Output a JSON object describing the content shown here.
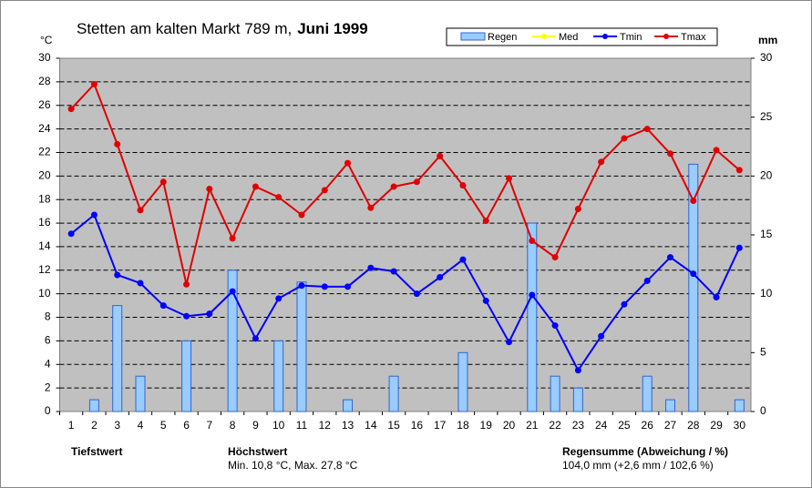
{
  "chart_data": {
    "type": "bar-line",
    "title": "Stetten am kalten Markt  789 m,",
    "title_emphasis": "Juni 1999",
    "y_unit": "°C",
    "y2_unit": "mm",
    "categories": [
      "1",
      "2",
      "3",
      "4",
      "5",
      "6",
      "7",
      "8",
      "9",
      "10",
      "11",
      "12",
      "13",
      "14",
      "15",
      "16",
      "17",
      "18",
      "19",
      "20",
      "21",
      "22",
      "23",
      "24",
      "25",
      "26",
      "27",
      "28",
      "29",
      "30"
    ],
    "series": [
      {
        "name": "Regen",
        "kind": "bar",
        "axis": "y2",
        "color": "#99ccff",
        "values": [
          0,
          1,
          9,
          3,
          0,
          6,
          0,
          12,
          0,
          6,
          11,
          0,
          1,
          0,
          3,
          0,
          0,
          5,
          0,
          0,
          16,
          3,
          2,
          0,
          0,
          3,
          1,
          21,
          0,
          1
        ]
      },
      {
        "name": "Med",
        "kind": "line",
        "color": "#ffff00",
        "values": [
          null,
          null,
          null,
          null,
          null,
          null,
          null,
          null,
          null,
          null,
          null,
          null,
          null,
          null,
          null,
          null,
          null,
          null,
          null,
          null,
          null,
          null,
          null,
          null,
          null,
          null,
          null,
          null,
          null,
          null
        ]
      },
      {
        "name": "Tmin",
        "kind": "line",
        "color": "#0000ff",
        "values": [
          15.1,
          16.7,
          11.6,
          10.9,
          9.0,
          8.1,
          8.3,
          10.2,
          6.2,
          9.6,
          10.7,
          10.6,
          10.6,
          12.2,
          11.9,
          10.0,
          11.4,
          12.9,
          9.4,
          5.9,
          9.9,
          7.3,
          3.5,
          6.4,
          9.1,
          11.1,
          13.1,
          11.7,
          9.7,
          13.9
        ]
      },
      {
        "name": "Tmax",
        "kind": "line",
        "color": "#e00000",
        "values": [
          25.7,
          27.8,
          22.7,
          17.1,
          19.5,
          10.8,
          18.9,
          14.7,
          19.1,
          18.2,
          16.7,
          18.8,
          21.1,
          17.3,
          19.1,
          19.5,
          21.7,
          19.2,
          16.2,
          19.8,
          14.5,
          13.1,
          17.2,
          21.2,
          23.2,
          24.0,
          21.9,
          17.9,
          22.2,
          20.5
        ]
      }
    ],
    "ylim": [
      0,
      30
    ],
    "yticks": [
      0,
      2,
      4,
      6,
      8,
      10,
      12,
      14,
      16,
      18,
      20,
      22,
      24,
      26,
      28,
      30
    ],
    "y2lim": [
      0,
      30
    ],
    "y2ticks": [
      0,
      5,
      10,
      15,
      20,
      25,
      30
    ],
    "grid": true,
    "background": "#c0c0c0",
    "footer": {
      "left_label": "Tiefstwert",
      "middle_label": "Höchstwert",
      "middle_text": "Min. 10,8 °C, Max. 27,8 °C",
      "right_label": "Regensumme (Abweichung / %)",
      "right_text": "104,0 mm (+2,6 mm / 102,6 %)"
    }
  }
}
